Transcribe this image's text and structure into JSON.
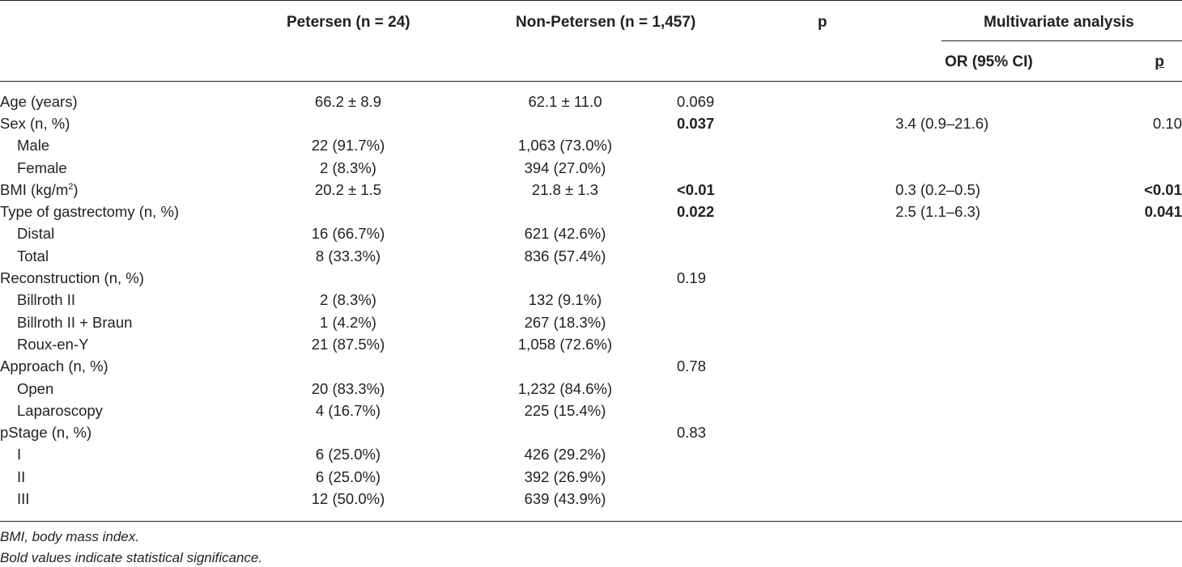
{
  "headers": {
    "petersen": "Petersen (n = 24)",
    "non_petersen": "Non-Petersen (n = 1,457)",
    "p": "p",
    "multivariate": "Multivariate analysis",
    "or": "OR (95% CI)",
    "mv_p": "p"
  },
  "rows": [
    {
      "label": "Age (years)",
      "sub": false,
      "pet": "66.2 ± 8.9",
      "non": "62.1 ± 11.0",
      "p": "0.069",
      "p_bold": false,
      "or": "",
      "mv_p": "",
      "mv_p_bold": false
    },
    {
      "label": "Sex (n, %)",
      "sub": false,
      "pet": "",
      "non": "",
      "p": "0.037",
      "p_bold": true,
      "or": "3.4 (0.9–21.6)",
      "mv_p": "0.10",
      "mv_p_bold": false
    },
    {
      "label": "Male",
      "sub": true,
      "pet": "22 (91.7%)",
      "non": "1,063 (73.0%)",
      "p": "",
      "p_bold": false,
      "or": "",
      "mv_p": "",
      "mv_p_bold": false
    },
    {
      "label": "Female",
      "sub": true,
      "pet": "2 (8.3%)",
      "non": "394 (27.0%)",
      "p": "",
      "p_bold": false,
      "or": "",
      "mv_p": "",
      "mv_p_bold": false
    },
    {
      "label": "BMI (kg/m",
      "label_sup": "2",
      "label_after": ")",
      "sub": false,
      "pet": "20.2 ± 1.5",
      "non": "21.8 ± 1.3",
      "p": "<0.01",
      "p_bold": true,
      "or": "0.3 (0.2–0.5)",
      "mv_p": "<0.01",
      "mv_p_bold": true
    },
    {
      "label": "Type of gastrectomy (n, %)",
      "sub": false,
      "pet": "",
      "non": "",
      "p": "0.022",
      "p_bold": true,
      "or": "2.5 (1.1–6.3)",
      "mv_p": "0.041",
      "mv_p_bold": true
    },
    {
      "label": "Distal",
      "sub": true,
      "pet": "16 (66.7%)",
      "non": "621 (42.6%)",
      "p": "",
      "p_bold": false,
      "or": "",
      "mv_p": "",
      "mv_p_bold": false
    },
    {
      "label": "Total",
      "sub": true,
      "pet": "8 (33.3%)",
      "non": "836 (57.4%)",
      "p": "",
      "p_bold": false,
      "or": "",
      "mv_p": "",
      "mv_p_bold": false
    },
    {
      "label": "Reconstruction (n, %)",
      "sub": false,
      "pet": "",
      "non": "",
      "p": "0.19",
      "p_bold": false,
      "or": "",
      "mv_p": "",
      "mv_p_bold": false
    },
    {
      "label": "Billroth II",
      "sub": true,
      "pet": "2 (8.3%)",
      "non": "132 (9.1%)",
      "p": "",
      "p_bold": false,
      "or": "",
      "mv_p": "",
      "mv_p_bold": false
    },
    {
      "label": "Billroth II + Braun",
      "sub": true,
      "pet": "1 (4.2%)",
      "non": "267 (18.3%)",
      "p": "",
      "p_bold": false,
      "or": "",
      "mv_p": "",
      "mv_p_bold": false
    },
    {
      "label": "Roux-en-Y",
      "sub": true,
      "pet": "21 (87.5%)",
      "non": "1,058 (72.6%)",
      "p": "",
      "p_bold": false,
      "or": "",
      "mv_p": "",
      "mv_p_bold": false
    },
    {
      "label": "Approach (n, %)",
      "sub": false,
      "pet": "",
      "non": "",
      "p": "0.78",
      "p_bold": false,
      "or": "",
      "mv_p": "",
      "mv_p_bold": false
    },
    {
      "label": "Open",
      "sub": true,
      "pet": "20 (83.3%)",
      "non": "1,232 (84.6%)",
      "p": "",
      "p_bold": false,
      "or": "",
      "mv_p": "",
      "mv_p_bold": false
    },
    {
      "label": "Laparoscopy",
      "sub": true,
      "pet": "4 (16.7%)",
      "non": "225 (15.4%)",
      "p": "",
      "p_bold": false,
      "or": "",
      "mv_p": "",
      "mv_p_bold": false
    },
    {
      "label": "pStage (n, %)",
      "sub": false,
      "pet": "",
      "non": "",
      "p": "0.83",
      "p_bold": false,
      "or": "",
      "mv_p": "",
      "mv_p_bold": false
    },
    {
      "label": "I",
      "sub": true,
      "pet": "6 (25.0%)",
      "non": "426 (29.2%)",
      "p": "",
      "p_bold": false,
      "or": "",
      "mv_p": "",
      "mv_p_bold": false
    },
    {
      "label": "II",
      "sub": true,
      "pet": "6 (25.0%)",
      "non": "392 (26.9%)",
      "p": "",
      "p_bold": false,
      "or": "",
      "mv_p": "",
      "mv_p_bold": false
    },
    {
      "label": "III",
      "sub": true,
      "pet": "12 (50.0%)",
      "non": "639 (43.9%)",
      "p": "",
      "p_bold": false,
      "or": "",
      "mv_p": "",
      "mv_p_bold": false
    }
  ],
  "footnotes": {
    "abbr": "BMI, body mass index.",
    "bold_note": "Bold values indicate statistical significance."
  }
}
